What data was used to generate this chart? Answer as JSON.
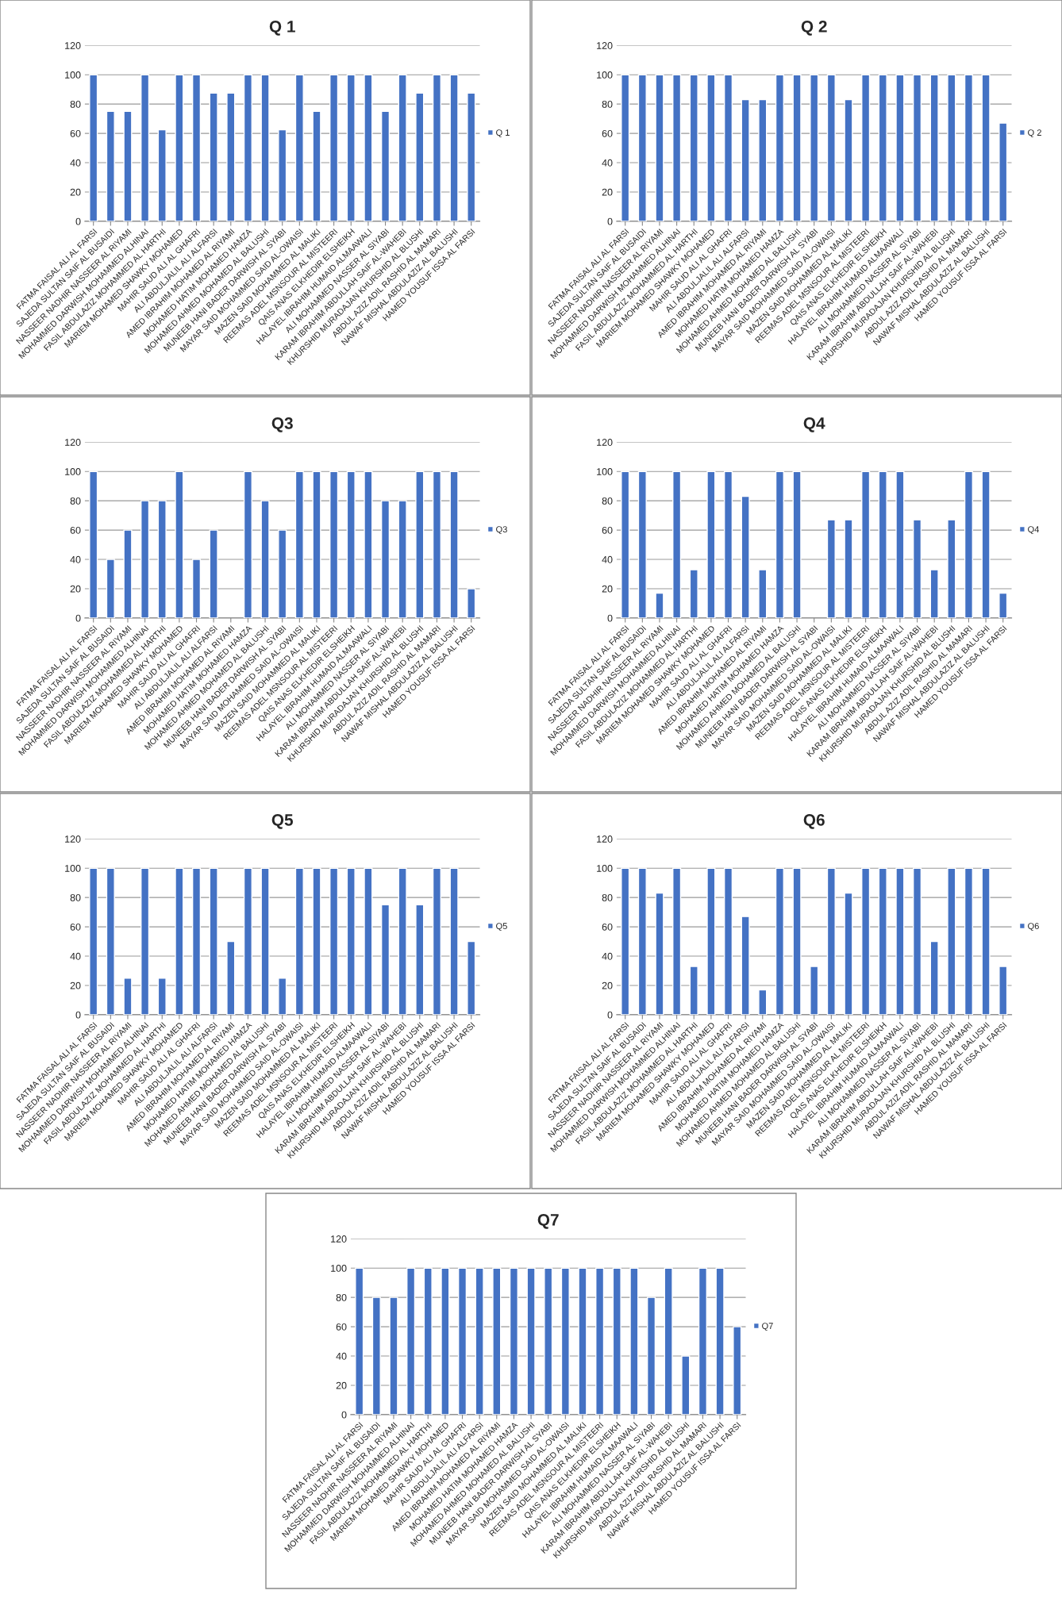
{
  "chart_data": [
    {
      "type": "bar",
      "title": "Q 1",
      "categories": [
        "FATMA FAISAL ALI AL FARSI",
        "SAJEDA SULTAN SAIF AL BUSAIDI",
        "NASSEER NADHIR NASSEER AL RIYAMI",
        "MOHAMMED DARWISH MOHAMMED ALHINAI",
        "FASIL ABDULAZIZ MOHAMMED AL HARTHI",
        "MARIEM MOHAMED SHAWKY MOHAMED",
        "MAHIR SAUD ALI AL GHAFRI",
        "ALI ABDULJALIL ALI ALFARSI",
        "AMED IBRAHIM MOHAMED AL RIYAMI",
        "MOHAMED HATIM MOHAMED HAMZA",
        "MOHAMED AHMED MOHAMED AL BALUSHI",
        "MUNEEB HANI BADER DARWISH AL SYABI",
        "MAYAR SAID MOHAMMED SAID AL-OWAISI",
        "MAZEN SAID MOHAMMED AL MALIKI",
        "REEMAS ADEL MSNSOUR AL MISTEERI",
        "QAIS ANAS ELKHEDIR ELSHEIKH",
        "HALAYEL IBRAHIM HUMAID ALMAAWALI",
        "ALI MOHAMMED NASSER AL SIYABI",
        "KARAM IBRAHIM ABDULLAH SAIF AL-WAHEBI",
        "KHURSHID MURADAJAN KHURSHID AL BLUSHI",
        "ABDUL AZIZ ADIL RASHID AL MAMARI",
        "NAWAF MISHAL ABDULAZIZ AL BALUSHI",
        "HAMED YOUSUF ISSA AL FARSI"
      ],
      "series": [
        {
          "name": "Q 1",
          "color": "#4472c4",
          "values": [
            100,
            75,
            75,
            100,
            62.5,
            100,
            100,
            87.5,
            87.5,
            100,
            100,
            62.5,
            100,
            75,
            100,
            100,
            100,
            75,
            100,
            87.5,
            100,
            100,
            87.5
          ]
        }
      ],
      "ylim": [
        0,
        120
      ],
      "yticks": [
        0,
        20,
        40,
        60,
        80,
        100,
        120
      ],
      "grid": "y",
      "legend": "right"
    },
    {
      "type": "bar",
      "title": "Q 2",
      "categories": [
        "FATMA FAISAL ALI AL FARSI",
        "SAJEDA SULTAN SAIF AL BUSAIDI",
        "NASSEER NADHIR NASSEER AL RIYAMI",
        "MOHAMMED DARWISH MOHAMMED ALHINAI",
        "FASIL ABDULAZIZ MOHAMMED AL HARTHI",
        "MARIEM MOHAMED SHAWKY MOHAMED",
        "MAHIR SAUD ALI AL GHAFRI",
        "ALI ABDULJALIL ALI ALFARSI",
        "AMED IBRAHIM MOHAMED AL RIYAMI",
        "MOHAMED HATIM MOHAMED HAMZA",
        "MOHAMED AHMED MOHAMED AL BALUSHI",
        "MUNEEB HANI BADER DARWISH AL SYABI",
        "MAYAR SAID MOHAMMED SAID AL-OWAISI",
        "MAZEN SAID MOHAMMED AL MALIKI",
        "REEMAS ADEL MSNSOUR AL MISTEERI",
        "QAIS ANAS ELKHEDIR ELSHEIKH",
        "HALAYEL IBRAHIM HUMAID ALMAAWALI",
        "ALI MOHAMMED NASSER AL SIYABI",
        "KARAM IBRAHIM ABDULLAH SAIF AL-WAHEBI",
        "KHURSHID MURADAJAN KHURSHID AL BLUSHI",
        "ABDUL AZIZ ADIL RASHID AL MAMARI",
        "NAWAF MISHAL ABDULAZIZ AL BALUSHI",
        "HAMED YOUSUF ISSA AL FARSI"
      ],
      "series": [
        {
          "name": "Q 2",
          "color": "#4472c4",
          "values": [
            100,
            100,
            100,
            100,
            100,
            100,
            100,
            83,
            83,
            100,
            100,
            100,
            100,
            83,
            100,
            100,
            100,
            100,
            100,
            100,
            100,
            100,
            67
          ]
        }
      ],
      "ylim": [
        0,
        120
      ],
      "yticks": [
        0,
        20,
        40,
        60,
        80,
        100,
        120
      ],
      "grid": "y",
      "legend": "right"
    },
    {
      "type": "bar",
      "title": "Q3",
      "categories": [
        "FATMA FAISAL ALI AL FARSI",
        "SAJEDA SULTAN SAIF AL BUSAIDI",
        "NASSEER NADHIR NASSEER AL RIYAMI",
        "MOHAMMED DARWISH MOHAMMED ALHINAI",
        "FASIL ABDULAZIZ MOHAMMED AL HARTHI",
        "MARIEM MOHAMED SHAWKY MOHAMED",
        "MAHIR SAUD ALI AL GHAFRI",
        "ALI ABDULJALIL ALI ALFARSI",
        "AMED IBRAHIM MOHAMED AL RIYAMI",
        "MOHAMED HATIM MOHAMED HAMZA",
        "MOHAMED AHMED MOHAMED AL BALUSHI",
        "MUNEEB HANI BADER DARWISH AL SYABI",
        "MAYAR SAID MOHAMMED SAID AL-OWAISI",
        "MAZEN SAID MOHAMMED AL MALIKI",
        "REEMAS ADEL MSNSOUR AL MISTEERI",
        "QAIS ANAS ELKHEDIR ELSHEIKH",
        "HALAYEL IBRAHIM HUMAID ALMAAWALI",
        "ALI MOHAMMED NASSER AL SIYABI",
        "KARAM IBRAHIM ABDULLAH SAIF AL-WAHEBI",
        "KHURSHID MURADAJAN KHURSHID AL BLUSHI",
        "ABDUL AZIZ ADIL RASHID AL MAMARI",
        "NAWAF MISHAL ABDULAZIZ AL BALUSHI",
        "HAMED YOUSUF ISSA AL FARSI"
      ],
      "series": [
        {
          "name": "Q3",
          "color": "#4472c4",
          "values": [
            100,
            40,
            60,
            80,
            80,
            100,
            40,
            60,
            null,
            100,
            80,
            60,
            100,
            100,
            100,
            100,
            100,
            80,
            80,
            100,
            100,
            100,
            20
          ]
        }
      ],
      "ylim": [
        0,
        120
      ],
      "yticks": [
        0,
        20,
        40,
        60,
        80,
        100,
        120
      ],
      "grid": "y",
      "legend": "right"
    },
    {
      "type": "bar",
      "title": "Q4",
      "categories": [
        "FATMA FAISAL ALI AL FARSI",
        "SAJEDA SULTAN SAIF AL BUSAIDI",
        "NASSEER NADHIR NASSEER AL RIYAMI",
        "MOHAMMED DARWISH MOHAMMED ALHINAI",
        "FASIL ABDULAZIZ MOHAMMED AL HARTHI",
        "MARIEM MOHAMED SHAWKY MOHAMED",
        "MAHIR SAUD ALI AL GHAFRI",
        "ALI ABDULJALIL ALI ALFARSI",
        "AMED IBRAHIM MOHAMED AL RIYAMI",
        "MOHAMED HATIM MOHAMED HAMZA",
        "MOHAMED AHMED MOHAMED AL BALUSHI",
        "MUNEEB HANI BADER DARWISH AL SYABI",
        "MAYAR SAID MOHAMMED SAID AL-OWAISI",
        "MAZEN SAID MOHAMMED AL MALIKI",
        "REEMAS ADEL MSNSOUR AL MISTEERI",
        "QAIS ANAS ELKHEDIR ELSHEIKH",
        "HALAYEL IBRAHIM HUMAID ALMAAWALI",
        "ALI MOHAMMED NASSER AL SIYABI",
        "KARAM IBRAHIM ABDULLAH SAIF AL-WAHEBI",
        "KHURSHID MURADAJAN KHURSHID AL BLUSHI",
        "ABDUL AZIZ ADIL RASHID AL MAMARI",
        "NAWAF MISHAL ABDULAZIZ AL BALUSHI",
        "HAMED YOUSUF ISSA AL FARSI"
      ],
      "series": [
        {
          "name": "Q4",
          "color": "#4472c4",
          "values": [
            100,
            100,
            17,
            100,
            33,
            100,
            100,
            83,
            33,
            100,
            100,
            null,
            67,
            67,
            100,
            100,
            100,
            67,
            33,
            67,
            100,
            100,
            17
          ]
        }
      ],
      "ylim": [
        0,
        120
      ],
      "yticks": [
        0,
        20,
        40,
        60,
        80,
        100,
        120
      ],
      "grid": "y",
      "legend": "right"
    },
    {
      "type": "bar",
      "title": "Q5",
      "categories": [
        "FATMA FAISAL ALI AL FARSI",
        "SAJEDA SULTAN SAIF AL BUSAIDI",
        "NASSEER NADHIR NASSEER AL RIYAMI",
        "MOHAMMED DARWISH MOHAMMED ALHINAI",
        "FASIL ABDULAZIZ MOHAMMED AL HARTHI",
        "MARIEM MOHAMED SHAWKY MOHAMED",
        "MAHIR SAUD ALI AL GHAFRI",
        "ALI ABDULJALIL ALI ALFARSI",
        "AMED IBRAHIM MOHAMED AL RIYAMI",
        "MOHAMED HATIM MOHAMED HAMZA",
        "MOHAMED AHMED MOHAMED AL BALUSHI",
        "MUNEEB HANI BADER DARWISH AL SYABI",
        "MAYAR SAID MOHAMMED SAID AL-OWAISI",
        "MAZEN SAID MOHAMMED AL MALIKI",
        "REEMAS ADEL MSNSOUR AL MISTEERI",
        "QAIS ANAS ELKHEDIR ELSHEIKH",
        "HALAYEL IBRAHIM HUMAID ALMAAWALI",
        "ALI MOHAMMED NASSER AL SIYABI",
        "KARAM IBRAHIM ABDULLAH SAIF AL-WAHEBI",
        "KHURSHID MURADAJAN KHURSHID AL BLUSHI",
        "ABDUL AZIZ ADIL RASHID AL MAMARI",
        "NAWAF MISHAL ABDULAZIZ AL BALUSHI",
        "HAMED YOUSUF ISSA AL FARSI"
      ],
      "series": [
        {
          "name": "Q5",
          "color": "#4472c4",
          "values": [
            100,
            100,
            25,
            100,
            25,
            100,
            100,
            100,
            50,
            100,
            100,
            25,
            100,
            100,
            100,
            100,
            100,
            75,
            100,
            75,
            100,
            100,
            50
          ]
        }
      ],
      "ylim": [
        0,
        120
      ],
      "yticks": [
        0,
        20,
        40,
        60,
        80,
        100,
        120
      ],
      "grid": "y",
      "legend": "right"
    },
    {
      "type": "bar",
      "title": "Q6",
      "categories": [
        "FATMA FAISAL ALI AL FARSI",
        "SAJEDA SULTAN SAIF AL BUSAIDI",
        "NASSEER NADHIR NASSEER AL RIYAMI",
        "MOHAMMED DARWISH MOHAMMED ALHINAI",
        "FASIL ABDULAZIZ MOHAMMED AL HARTHI",
        "MARIEM MOHAMED SHAWKY MOHAMED",
        "MAHIR SAUD ALI AL GHAFRI",
        "ALI ABDULJALIL ALI ALFARSI",
        "AMED IBRAHIM MOHAMED AL RIYAMI",
        "MOHAMED HATIM MOHAMED HAMZA",
        "MOHAMED AHMED MOHAMED AL BALUSHI",
        "MUNEEB HANI BADER DARWISH AL SYABI",
        "MAYAR SAID MOHAMMED SAID AL-OWAISI",
        "MAZEN SAID MOHAMMED AL MALIKI",
        "REEMAS ADEL MSNSOUR AL MISTEERI",
        "QAIS ANAS ELKHEDIR ELSHEIKH",
        "HALAYEL IBRAHIM HUMAID ALMAAWALI",
        "ALI MOHAMMED NASSER AL SIYABI",
        "KARAM IBRAHIM ABDULLAH SAIF AL-WAHEBI",
        "KHURSHID MURADAJAN KHURSHID AL BLUSHI",
        "ABDUL AZIZ ADIL RASHID AL MAMARI",
        "NAWAF MISHAL ABDULAZIZ AL BALUSHI",
        "HAMED YOUSUF ISSA AL FARSI"
      ],
      "series": [
        {
          "name": "Q6",
          "color": "#4472c4",
          "values": [
            100,
            100,
            83,
            100,
            33,
            100,
            100,
            67,
            17,
            100,
            100,
            33,
            100,
            83,
            100,
            100,
            100,
            100,
            50,
            100,
            100,
            100,
            33
          ]
        }
      ],
      "ylim": [
        0,
        120
      ],
      "yticks": [
        0,
        20,
        40,
        60,
        80,
        100,
        120
      ],
      "grid": "y",
      "legend": "right"
    },
    {
      "type": "bar",
      "title": "Q7",
      "categories": [
        "FATMA FAISAL ALI AL FARSI",
        "SAJEDA SULTAN SAIF AL BUSAIDI",
        "NASSEER NADHIR NASSEER AL RIYAMI",
        "MOHAMMED DARWISH MOHAMMED ALHINAI",
        "FASIL ABDULAZIZ MOHAMMED AL HARTHI",
        "MARIEM MOHAMED SHAWKY MOHAMED",
        "MAHIR SAUD ALI AL GHAFRI",
        "ALI ABDULJALIL ALI ALFARSI",
        "AMED IBRAHIM MOHAMED AL RIYAMI",
        "MOHAMED HATIM MOHAMED HAMZA",
        "MOHAMED AHMED MOHAMED AL BALUSHI",
        "MUNEEB HANI BADER DARWISH AL SYABI",
        "MAYAR SAID MOHAMMED SAID AL-OWAISI",
        "MAZEN SAID MOHAMMED AL MALIKI",
        "REEMAS ADEL MSNSOUR AL MISTEERI",
        "QAIS ANAS ELKHEDIR ELSHEIKH",
        "HALAYEL IBRAHIM HUMAID ALMAAWALI",
        "ALI MOHAMMED NASSER AL SIYABI",
        "KARAM IBRAHIM ABDULLAH SAIF AL-WAHEBI",
        "KHURSHID MURADAJAN KHURSHID AL BLUSHI",
        "ABDUL AZIZ ADIL RASHID AL MAMARI",
        "NAWAF MISHAL ABDULAZIZ AL BALUSHI",
        "HAMED YOUSUF ISSA AL FARSI"
      ],
      "series": [
        {
          "name": "Q7",
          "color": "#4472c4",
          "values": [
            100,
            80,
            80,
            100,
            100,
            100,
            100,
            100,
            100,
            100,
            100,
            100,
            100,
            100,
            100,
            100,
            100,
            80,
            100,
            40,
            100,
            100,
            60
          ]
        }
      ],
      "ylim": [
        0,
        120
      ],
      "yticks": [
        0,
        20,
        40,
        60,
        80,
        100,
        120
      ],
      "grid": "y",
      "legend": "right"
    }
  ]
}
